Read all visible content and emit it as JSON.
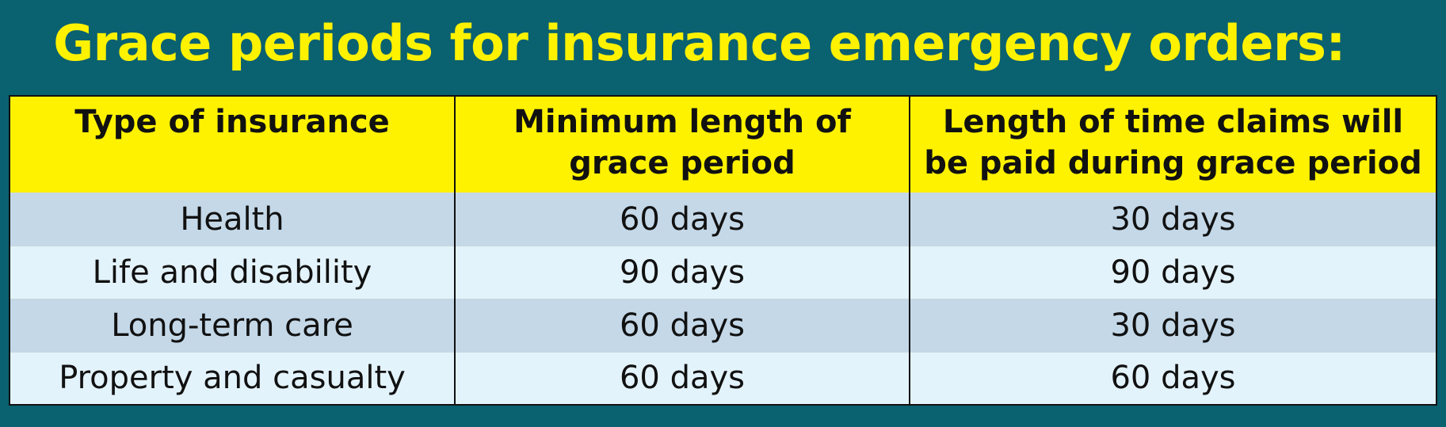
{
  "title": "Grace periods for insurance emergency orders:",
  "table": {
    "headers": [
      "Type of insurance",
      "Minimum length of grace period",
      "Length of time claims will be paid during grace period"
    ],
    "rows": [
      [
        "Health",
        "60 days",
        "30 days"
      ],
      [
        "Life and disability",
        "90 days",
        "90 days"
      ],
      [
        "Long-term care",
        "60 days",
        "30 days"
      ],
      [
        "Property and casualty",
        "60 days",
        "60 days"
      ]
    ]
  },
  "colors": {
    "background": "#0a6170",
    "title": "#fff200",
    "header_bg": "#fff200",
    "row_dark": "#c4d8e8",
    "row_light": "#e3f3fb"
  }
}
